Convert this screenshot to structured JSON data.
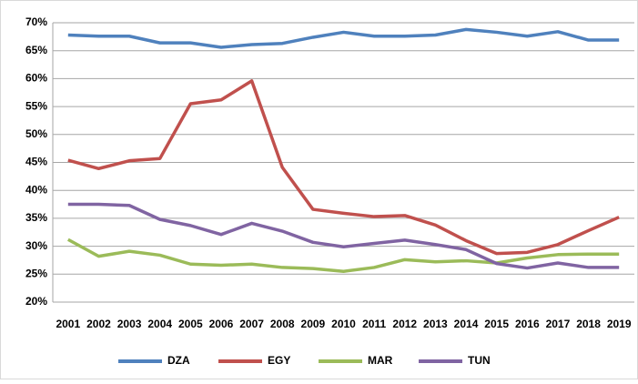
{
  "chart_data": {
    "type": "line",
    "categories": [
      "2001",
      "2002",
      "2003",
      "2004",
      "2005",
      "2006",
      "2007",
      "2008",
      "2009",
      "2010",
      "2011",
      "2012",
      "2013",
      "2014",
      "2015",
      "2016",
      "2017",
      "2018",
      "2019"
    ],
    "series": [
      {
        "name": "DZA",
        "color": "#4f81bd",
        "values": [
          67.8,
          67.6,
          67.6,
          66.4,
          66.4,
          65.6,
          66.1,
          66.3,
          67.4,
          68.3,
          67.6,
          67.6,
          67.8,
          68.8,
          68.3,
          67.6,
          68.4,
          66.9,
          66.9
        ]
      },
      {
        "name": "EGY",
        "color": "#c0504d",
        "values": [
          45.4,
          43.9,
          45.3,
          45.7,
          55.5,
          56.2,
          59.6,
          44.1,
          36.6,
          35.9,
          35.3,
          35.5,
          33.8,
          31.0,
          28.7,
          28.9,
          30.3,
          32.8,
          35.2
        ]
      },
      {
        "name": "MAR",
        "color": "#9bbb59",
        "values": [
          31.2,
          28.2,
          29.1,
          28.4,
          26.8,
          26.6,
          26.8,
          26.2,
          26.0,
          25.5,
          26.2,
          27.6,
          27.2,
          27.4,
          27.0,
          27.9,
          28.5,
          28.6,
          28.6
        ]
      },
      {
        "name": "TUN",
        "color": "#8064a2",
        "values": [
          37.5,
          37.5,
          37.3,
          34.8,
          33.7,
          32.1,
          34.1,
          32.7,
          30.7,
          29.9,
          30.5,
          31.1,
          30.3,
          29.4,
          26.9,
          26.1,
          27.0,
          26.2,
          26.2
        ]
      }
    ],
    "ylim": [
      20,
      70
    ],
    "yticks": [
      {
        "value": 20,
        "label": "20%"
      },
      {
        "value": 25,
        "label": "25%"
      },
      {
        "value": 30,
        "label": "30%"
      },
      {
        "value": 35,
        "label": "35%"
      },
      {
        "value": 40,
        "label": "40%"
      },
      {
        "value": 45,
        "label": "45%"
      },
      {
        "value": 50,
        "label": "50%"
      },
      {
        "value": 55,
        "label": "55%"
      },
      {
        "value": 60,
        "label": "60%"
      },
      {
        "value": 65,
        "label": "65%"
      },
      {
        "value": 70,
        "label": "70%"
      }
    ],
    "grid": true,
    "legend": "bottom"
  }
}
